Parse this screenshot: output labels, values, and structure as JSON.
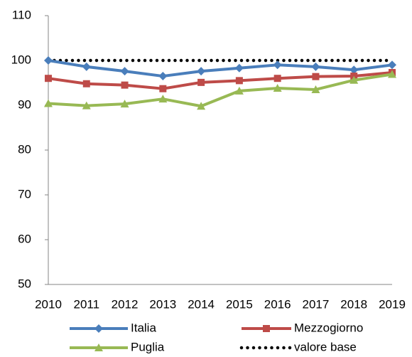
{
  "chart_data": {
    "type": "line",
    "categories": [
      "2010",
      "2011",
      "2012",
      "2013",
      "2014",
      "2015",
      "2016",
      "2017",
      "2018",
      "2019"
    ],
    "series": [
      {
        "name": "Italia",
        "color": "#4a7ebb",
        "marker": "diamond",
        "dash": "solid",
        "values": [
          100,
          98.6,
          97.6,
          96.5,
          97.6,
          98.3,
          99.0,
          98.6,
          97.9,
          99.0
        ]
      },
      {
        "name": "Mezzogiorno",
        "color": "#be4b48",
        "marker": "square",
        "dash": "solid",
        "values": [
          96.0,
          94.8,
          94.5,
          93.7,
          95.1,
          95.5,
          96.0,
          96.4,
          96.5,
          97.3
        ]
      },
      {
        "name": "Puglia",
        "color": "#98b954",
        "marker": "triangle",
        "dash": "solid",
        "values": [
          90.4,
          89.9,
          90.3,
          91.4,
          89.8,
          93.2,
          93.8,
          93.5,
          95.6,
          96.9
        ]
      },
      {
        "name": "valore base",
        "color": "#000000",
        "marker": "none",
        "dash": "dotted",
        "values": [
          100,
          100,
          100,
          100,
          100,
          100,
          100,
          100,
          100,
          100
        ]
      }
    ],
    "ylim": [
      50,
      110
    ],
    "yticks": [
      50,
      60,
      70,
      80,
      90,
      100,
      110
    ],
    "grid": false,
    "legend": "bottom"
  }
}
